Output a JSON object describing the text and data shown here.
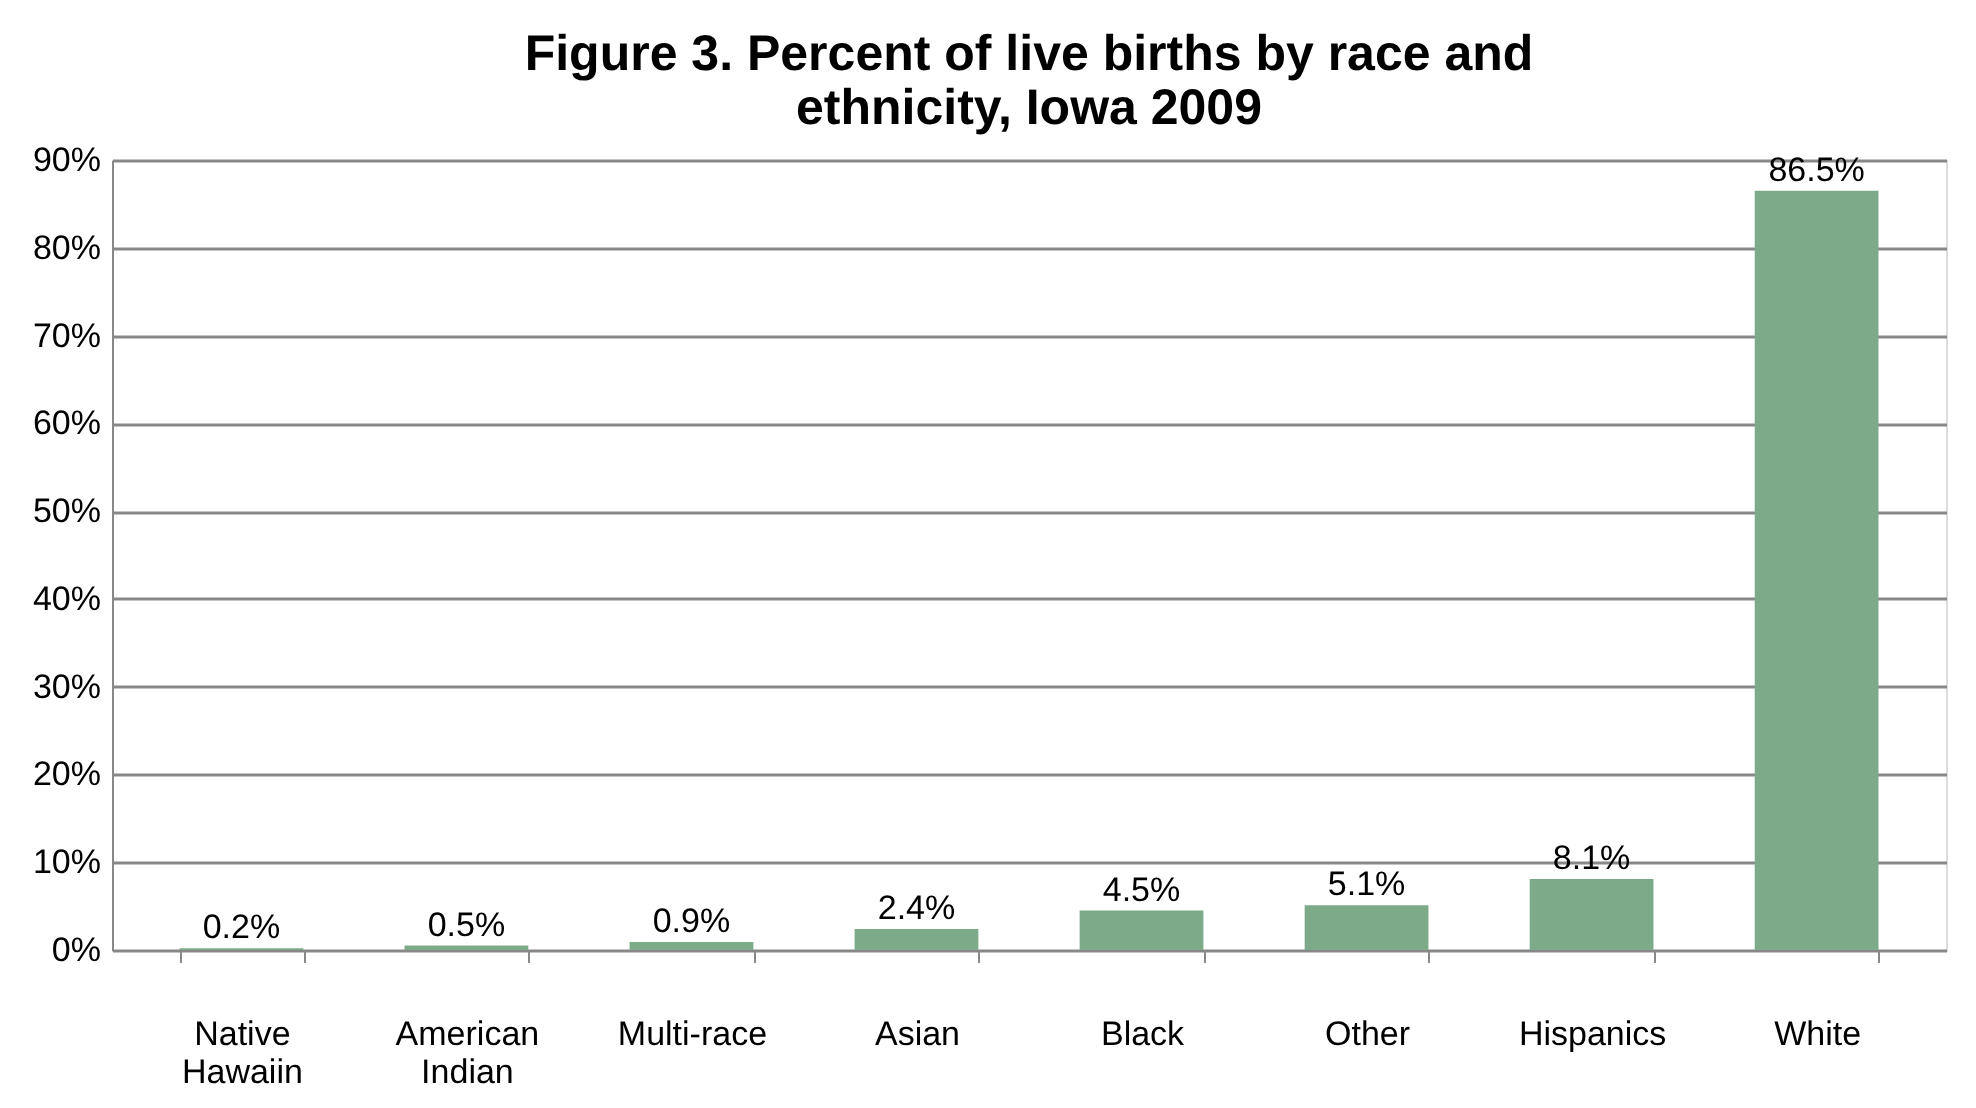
{
  "chart_data": {
    "type": "bar",
    "title": "Figure 3. Percent of live births by race and ethnicity, Iowa 2009",
    "categories": [
      "Native Hawaiin",
      "American Indian",
      "Multi-race",
      "Asian",
      "Black",
      "Other",
      "Hispanics",
      "White"
    ],
    "values": [
      0.2,
      0.5,
      0.9,
      2.4,
      4.5,
      5.1,
      8.1,
      86.5
    ],
    "value_labels": [
      "0.2%",
      "0.5%",
      "0.9%",
      "2.4%",
      "4.5%",
      "5.1%",
      "8.1%",
      "86.5%"
    ],
    "color": "#7dab8a",
    "ylim": [
      0,
      90
    ],
    "yticks": [
      {
        "value": 0,
        "label": "0%"
      },
      {
        "value": 10,
        "label": "10%"
      },
      {
        "value": 20,
        "label": "20%"
      },
      {
        "value": 30,
        "label": "30%"
      },
      {
        "value": 40,
        "label": "40%"
      },
      {
        "value": 50,
        "label": "50%"
      },
      {
        "value": 60,
        "label": "60%"
      },
      {
        "value": 70,
        "label": "70%"
      },
      {
        "value": 80,
        "label": "80%"
      },
      {
        "value": 90,
        "label": "90%"
      }
    ],
    "grid": "y"
  }
}
